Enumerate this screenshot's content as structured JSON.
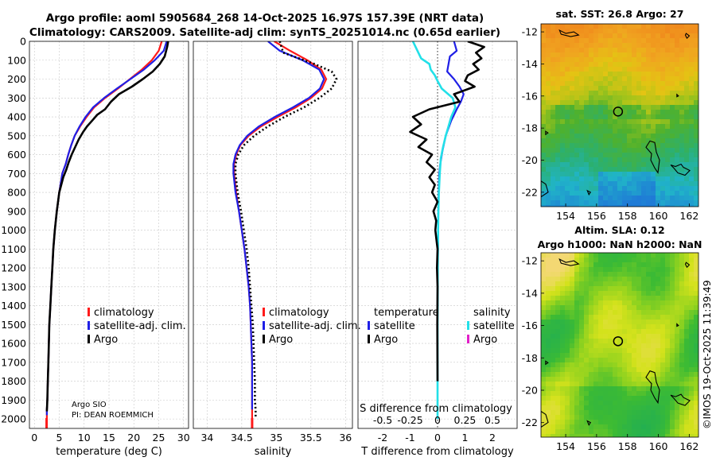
{
  "title_line1": "Argo profile: aoml 5905684_268 14-Oct-2025 16.97S 157.39E (NRT data)",
  "title_line2": "Climatology: CARS2009. Satellite-adj clim: synTS_20251014.nc (0.65d earlier)",
  "watermark": "©IMOS 19-Oct-2025 11:39:49",
  "colors": {
    "climatology": "#ff1a1a",
    "satellite": "#1f1fe6",
    "argo": "#000000",
    "sat_salinity": "#22e0e8",
    "argo_salinity": "#e21fc8"
  },
  "chart_data": [
    {
      "type": "line",
      "id": "temperature",
      "xlabel": "temperature (deg C)",
      "xlim": [
        -1,
        31
      ],
      "ylim": [
        2050,
        0
      ],
      "xticks": [
        0,
        5,
        10,
        15,
        20,
        25,
        30
      ],
      "yticks": [
        0,
        100,
        200,
        300,
        400,
        500,
        600,
        700,
        800,
        900,
        1000,
        1100,
        1200,
        1300,
        1400,
        1500,
        1600,
        1700,
        1800,
        1900,
        2000
      ],
      "legend": [
        "climatology",
        "satellite-adj. clim.",
        "Argo"
      ],
      "annotation_lines": [
        "Argo SIO",
        "PI: DEAN ROEMMICH"
      ],
      "series": [
        {
          "name": "climatology",
          "color": "#ff1a1a",
          "width": 2.2,
          "dash": "",
          "x": [
            25.6,
            25.0,
            23.6,
            21.6,
            19.2,
            16.8,
            14.2,
            12.0,
            10.5,
            9.2,
            8.1,
            7.4,
            6.8,
            6.3,
            5.6,
            5.0,
            4.5,
            4.1,
            3.8,
            3.6,
            3.4,
            3.2,
            3.0,
            2.9,
            2.8,
            2.7,
            2.6,
            2.5,
            2.5,
            2.5,
            2.5,
            2.45
          ],
          "y": [
            0,
            50,
            100,
            150,
            200,
            250,
            300,
            350,
            400,
            450,
            500,
            550,
            600,
            650,
            700,
            800,
            900,
            1000,
            1100,
            1200,
            1300,
            1400,
            1500,
            1600,
            1700,
            1800,
            1900,
            1950,
            1980,
            2000,
            2020,
            2050
          ]
        },
        {
          "name": "satellite-adj. clim.",
          "color": "#1f1fe6",
          "width": 2.2,
          "dash": "",
          "x": [
            26.6,
            26.0,
            24.2,
            22.0,
            19.3,
            16.6,
            14.0,
            11.8,
            10.3,
            9.1,
            8.1,
            7.4,
            6.8,
            6.3,
            5.6,
            5.0,
            4.5,
            4.1,
            3.8,
            3.6,
            3.4,
            3.2,
            3.0,
            2.9,
            2.8,
            2.7,
            2.6,
            2.5,
            2.5
          ],
          "y": [
            0,
            50,
            100,
            150,
            200,
            250,
            300,
            350,
            400,
            450,
            500,
            550,
            600,
            650,
            700,
            800,
            900,
            1000,
            1100,
            1200,
            1300,
            1400,
            1500,
            1600,
            1700,
            1800,
            1900,
            1950,
            1980
          ]
        },
        {
          "name": "Argo",
          "color": "#000000",
          "width": 2.6,
          "dash": "",
          "x": [
            26.9,
            26.7,
            26.2,
            25.2,
            23.8,
            21.8,
            19.6,
            17.0,
            15.4,
            14.2,
            12.6,
            11.6,
            10.6,
            9.8,
            8.9,
            8.2,
            7.5,
            6.9,
            6.4,
            5.8,
            5.0,
            4.5,
            4.1,
            3.8,
            3.6,
            3.4,
            3.2,
            3.0,
            2.9,
            2.8,
            2.7,
            2.6,
            2.5
          ],
          "y": [
            0,
            30,
            80,
            120,
            160,
            200,
            240,
            280,
            320,
            360,
            390,
            420,
            450,
            480,
            520,
            560,
            600,
            640,
            680,
            720,
            800,
            900,
            1000,
            1100,
            1200,
            1300,
            1400,
            1500,
            1600,
            1700,
            1800,
            1900,
            1960
          ]
        }
      ]
    },
    {
      "type": "line",
      "id": "salinity",
      "xlabel": "salinity",
      "xlim": [
        33.8,
        36.1
      ],
      "ylim": [
        2050,
        0
      ],
      "xticks": [
        34,
        34.5,
        35,
        35.5,
        36
      ],
      "xticklabels": [
        "34",
        "34.5",
        "35",
        "35.5",
        "36"
      ],
      "legend": [
        "climatology",
        "satellite-adj. clim.",
        "Argo"
      ],
      "series": [
        {
          "name": "climatology",
          "color": "#ff1a1a",
          "width": 2.2,
          "dash": "",
          "x": [
            34.97,
            35.2,
            35.45,
            35.65,
            35.72,
            35.66,
            35.5,
            35.28,
            35.02,
            34.78,
            34.6,
            34.48,
            34.42,
            34.39,
            34.39,
            34.42,
            34.46,
            34.5,
            34.54,
            34.57,
            34.6,
            34.62,
            34.63,
            34.64,
            34.65,
            34.65,
            34.65,
            34.65,
            34.65,
            34.65
          ],
          "y": [
            0,
            50,
            100,
            150,
            200,
            250,
            300,
            350,
            400,
            450,
            500,
            550,
            600,
            650,
            700,
            800,
            900,
            1000,
            1100,
            1200,
            1300,
            1400,
            1500,
            1600,
            1700,
            1800,
            1900,
            1950,
            2000,
            2050
          ]
        },
        {
          "name": "satellite-adj. clim.",
          "color": "#1f1fe6",
          "width": 2.2,
          "dash": "",
          "x": [
            34.88,
            35.05,
            35.38,
            35.62,
            35.69,
            35.63,
            35.47,
            35.24,
            34.98,
            34.75,
            34.58,
            34.47,
            34.41,
            34.38,
            34.38,
            34.41,
            34.46,
            34.5,
            34.54,
            34.57,
            34.6,
            34.62,
            34.63,
            34.64,
            34.65,
            34.65,
            34.65,
            34.65
          ],
          "y": [
            0,
            50,
            100,
            150,
            200,
            250,
            300,
            350,
            400,
            450,
            500,
            550,
            600,
            650,
            700,
            800,
            900,
            1000,
            1100,
            1200,
            1300,
            1400,
            1500,
            1600,
            1700,
            1800,
            1900,
            1950
          ]
        },
        {
          "name": "Argo",
          "color": "#000000",
          "width": 2.6,
          "dash": "2 3",
          "x": [
            35.05,
            35.1,
            35.55,
            35.8,
            35.87,
            35.8,
            35.62,
            35.4,
            35.12,
            34.88,
            34.68,
            34.53,
            34.45,
            34.41,
            34.41,
            34.44,
            34.49,
            34.53,
            34.57,
            34.6,
            34.62,
            34.64,
            34.66,
            34.67,
            34.68,
            34.69,
            34.69,
            34.7,
            34.7
          ],
          "y": [
            0,
            60,
            120,
            160,
            200,
            250,
            300,
            350,
            400,
            450,
            500,
            550,
            600,
            650,
            700,
            800,
            900,
            1000,
            1100,
            1200,
            1300,
            1400,
            1500,
            1600,
            1700,
            1800,
            1900,
            1950,
            1990
          ]
        }
      ]
    },
    {
      "type": "line",
      "id": "difference",
      "xlabel": "T difference from climatology",
      "xlim": [
        -2.9,
        2.9
      ],
      "ylim": [
        2050,
        0
      ],
      "xticks": [
        -2,
        -1,
        0,
        1,
        2
      ],
      "legend_titles": [
        "temperature",
        "salinity"
      ],
      "legend_left": [
        "satellite",
        "Argo"
      ],
      "legend_right": [
        "satellite",
        "Argo"
      ],
      "s_axis_title": "S difference from climatology",
      "s_axis_ticks": [
        "-0.5",
        "-0.25",
        "0",
        "0.25",
        "0.5"
      ],
      "s_axis_values": [
        -0.5,
        -0.25,
        0,
        0.25,
        0.5
      ],
      "s_scale": 4,
      "series": [
        {
          "name": "temperature satellite",
          "color": "#1f1fe6",
          "width": 2.2,
          "dash": "",
          "x": [
            0.6,
            0.7,
            0.45,
            0.4,
            0.35,
            0.6,
            0.8,
            0.95,
            0.85,
            0.7,
            0.5,
            0.3,
            0.18,
            0.1,
            0.06,
            0.04,
            0.03,
            0.02,
            0.01,
            0.0
          ],
          "y": [
            0,
            50,
            80,
            120,
            160,
            200,
            240,
            280,
            320,
            360,
            420,
            500,
            580,
            650,
            700,
            800,
            900,
            1000,
            1200,
            1400
          ]
        },
        {
          "name": "salinity satellite",
          "color": "#22e0e8",
          "width": 2.6,
          "dash": "",
          "x": [
            -0.9,
            -0.8,
            -0.7,
            -0.6,
            -0.3,
            -0.25,
            -0.1,
            0.0,
            0.15,
            0.55,
            0.65,
            0.5,
            0.4,
            0.3,
            0.2,
            0.12,
            0.08,
            0.05,
            0.03,
            0.02,
            0.01,
            0.0,
            0.0,
            0.0
          ],
          "y": [
            0,
            30,
            60,
            90,
            120,
            150,
            180,
            210,
            250,
            300,
            350,
            400,
            450,
            500,
            560,
            620,
            700,
            800,
            900,
            1000,
            1200,
            1500,
            1800,
            2000
          ]
        },
        {
          "name": "temperature Argo",
          "color": "#000000",
          "width": 2.6,
          "dash": "",
          "x": [
            1.1,
            1.7,
            1.4,
            1.6,
            1.3,
            1.5,
            1.1,
            1.0,
            1.35,
            0.6,
            0.8,
            -0.3,
            -0.9,
            -0.6,
            -1.0,
            -0.4,
            -0.7,
            -0.2,
            -0.4,
            -0.1,
            -0.3,
            -0.1,
            -0.2,
            0.0,
            -0.15,
            -0.05,
            -0.08,
            0.0,
            -0.02,
            0.0,
            -0.01,
            0.0
          ],
          "y": [
            0,
            30,
            60,
            90,
            120,
            150,
            180,
            210,
            240,
            280,
            320,
            360,
            400,
            440,
            480,
            520,
            560,
            600,
            640,
            680,
            720,
            760,
            800,
            850,
            900,
            950,
            1000,
            1100,
            1200,
            1300,
            1500,
            1800
          ]
        }
      ]
    }
  ],
  "maps": [
    {
      "id": "sst",
      "title": "sat. SST: 26.8 Argo: 27",
      "title_line2": "",
      "xticks": [
        "154",
        "156",
        "158",
        "160",
        "162"
      ],
      "yticks": [
        "-12",
        "-14",
        "-16",
        "-18",
        "-20",
        "-22"
      ],
      "lon_range": [
        152.4,
        162.6
      ],
      "lat_range": [
        -22.9,
        -11.5
      ],
      "float_lon": 157.39,
      "float_lat": -16.97
    },
    {
      "id": "sla",
      "title": "Altim. SLA: 0.12",
      "title_line2": "Argo h1000: NaN h2000: NaN",
      "xticks": [
        "154",
        "156",
        "158",
        "160",
        "162"
      ],
      "yticks": [
        "-12",
        "-14",
        "-16",
        "-18",
        "-20",
        "-22"
      ],
      "lon_range": [
        152.4,
        162.6
      ],
      "lat_range": [
        -22.9,
        -11.5
      ],
      "float_lon": 157.39,
      "float_lat": -16.97
    }
  ]
}
